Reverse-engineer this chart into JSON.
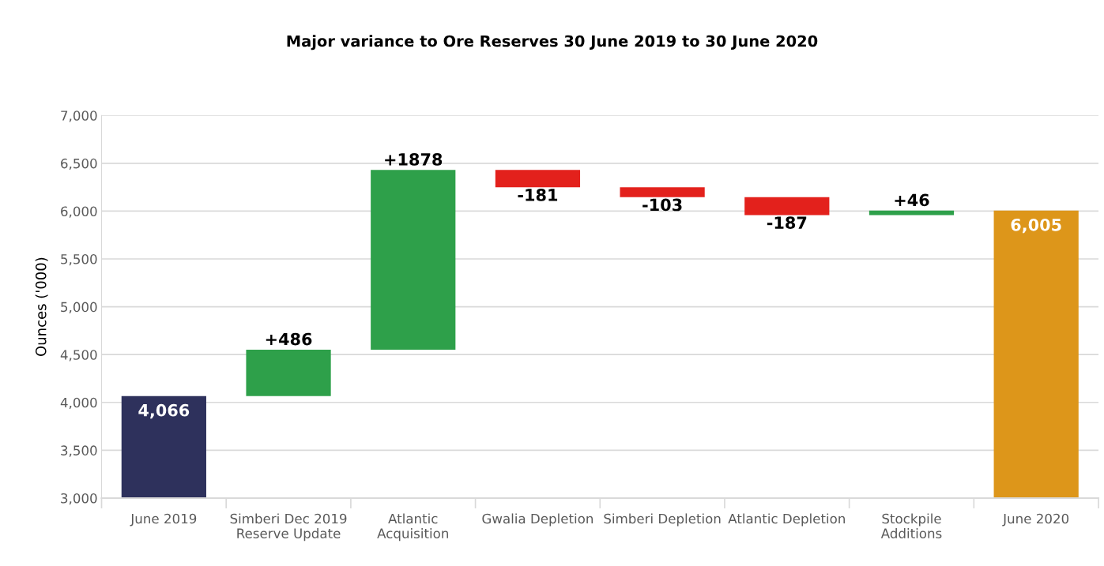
{
  "chart_data": {
    "type": "bar",
    "title": "Major variance to Ore Reserves 30 June 2019 to 30 June 2020",
    "ylabel": "Ounces ('000)",
    "categories": [
      "June 2019",
      "Simberi Dec 2019\nReserve Update",
      "Atlantic\nAcquisition",
      "Gwalia Depletion",
      "Simberi Depletion",
      "Atlantic Depletion",
      "Stockpile\nAdditions",
      "June 2020"
    ],
    "values": [
      4066,
      486,
      1878,
      -181,
      -103,
      -187,
      46,
      6005
    ],
    "base": [
      null,
      4066,
      4552,
      6430,
      6249,
      6146,
      5959,
      null
    ],
    "colors": [
      "#2e315c",
      "#2ea04a",
      "#2ea04a",
      "#e3211c",
      "#e3211c",
      "#e3211c",
      "#2ea04a",
      "#dd961a"
    ],
    "value_labels": [
      "4,066",
      "+486",
      "+1878",
      "-181",
      "-103",
      "-187",
      "+46",
      "6,005"
    ],
    "ylim": [
      3000,
      7000
    ],
    "yticks": [
      {
        "value": 3000,
        "label": "3,000"
      },
      {
        "value": 3500,
        "label": "3,500"
      },
      {
        "value": 4000,
        "label": "4,000"
      },
      {
        "value": 4500,
        "label": "4,500"
      },
      {
        "value": 5000,
        "label": "5,000"
      },
      {
        "value": 5500,
        "label": "5,500"
      },
      {
        "value": 6000,
        "label": "6,000"
      },
      {
        "value": 6500,
        "label": "6,500"
      },
      {
        "value": 7000,
        "label": "7,000"
      }
    ],
    "grid": "y"
  }
}
